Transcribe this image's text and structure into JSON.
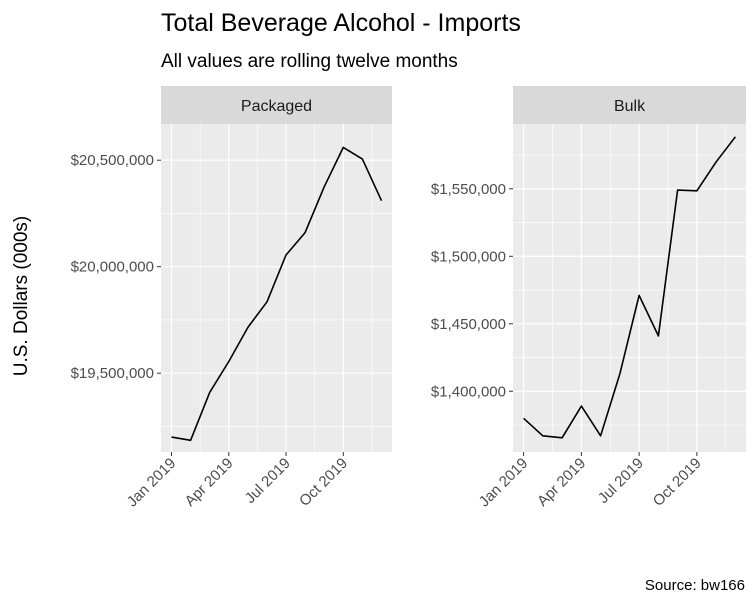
{
  "title": "Total Beverage Alcohol - Imports",
  "subtitle": "All values are rolling twelve months",
  "caption": "Source: bw166",
  "chart_data": {
    "type": "line",
    "ylabel": "U.S. Dollars (000s)",
    "x": [
      "2019-01",
      "2019-02",
      "2019-03",
      "2019-04",
      "2019-05",
      "2019-06",
      "2019-07",
      "2019-08",
      "2019-09",
      "2019-10",
      "2019-11",
      "2019-12"
    ],
    "x_tick_labels": [
      "Jan 2019",
      "Apr 2019",
      "Jul 2019",
      "Oct 2019"
    ],
    "x_tick_months": [
      "2019-01",
      "2019-04",
      "2019-07",
      "2019-10"
    ],
    "grid": true,
    "panels": [
      {
        "strip": "Packaged",
        "values": [
          19200000,
          19185000,
          19410000,
          19555000,
          19715000,
          19835000,
          20055000,
          20160000,
          20375000,
          20560000,
          20505000,
          20310000
        ],
        "ylim": [
          19130000,
          20670000
        ],
        "y_ticks": [
          19500000,
          20000000,
          20500000
        ],
        "y_tick_labels": [
          "$19,500,000",
          "$20,000,000",
          "$20,500,000"
        ]
      },
      {
        "strip": "Bulk",
        "values": [
          1380000,
          1367000,
          1365500,
          1389000,
          1367000,
          1413000,
          1471000,
          1441000,
          1549000,
          1548500,
          1570000,
          1588500
        ],
        "ylim": [
          1355000,
          1598000
        ],
        "y_ticks": [
          1400000,
          1450000,
          1500000,
          1550000
        ],
        "y_tick_labels": [
          "$1,400,000",
          "$1,450,000",
          "$1,500,000",
          "$1,550,000"
        ]
      }
    ]
  }
}
